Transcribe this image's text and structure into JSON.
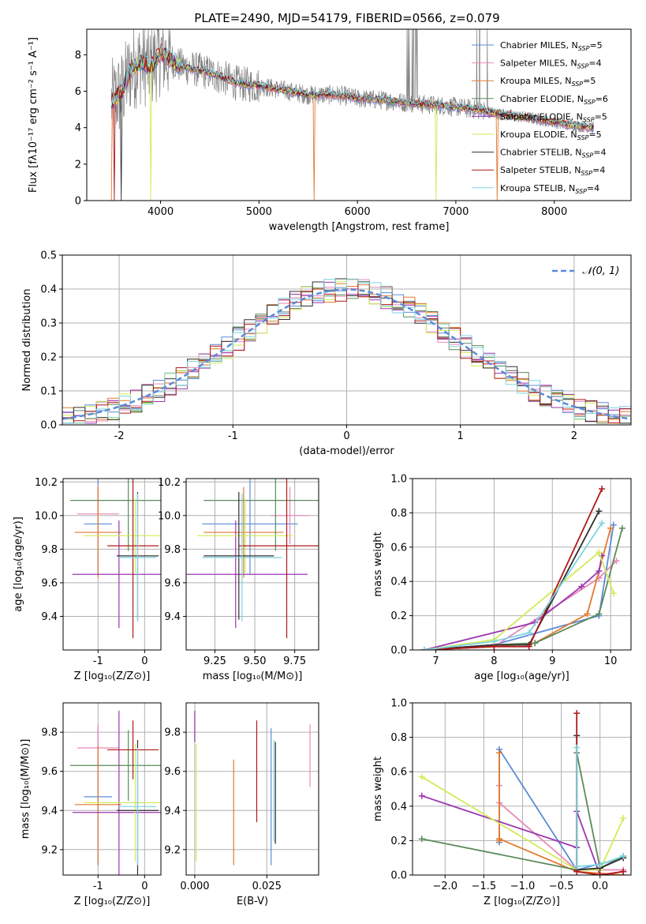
{
  "chart_data": [
    {
      "id": "spectrum",
      "type": "line",
      "title": "PLATE=2490, MJD=54179, FIBERID=0566, z=0.079",
      "xlabel": "wavelength [Angstrom, rest frame]",
      "ylabel": "Flux [fλ10⁻¹⁷ erg cm⁻² s⁻¹ A⁻¹]",
      "xlim": [
        3250,
        8780
      ],
      "ylim": [
        0,
        9.4
      ],
      "xticks": [
        4000,
        5000,
        6000,
        7000,
        8000
      ],
      "yticks": [
        0,
        2,
        4,
        6,
        8
      ],
      "grid": false,
      "legend_position": "top-right",
      "legend": [
        {
          "label": "Chabrier MILES, N_SSP=5",
          "color": "#5b8bd8"
        },
        {
          "label": "Salpeter MILES, N_SSP=4",
          "color": "#e889b8"
        },
        {
          "label": "Kroupa MILES, N_SSP=5",
          "color": "#e47a2e"
        },
        {
          "label": "Chabrier ELODIE, N_SSP=6",
          "color": "#5c8a5c"
        },
        {
          "label": "Salpeter ELODIE, N_SSP=5",
          "color": "#9b36b0"
        },
        {
          "label": "Kroupa ELODIE, N_SSP=5",
          "color": "#d4ea58"
        },
        {
          "label": "Chabrier STELIB, N_SSP=4",
          "color": "#303030"
        },
        {
          "label": "Salpeter STELIB, N_SSP=4",
          "color": "#b01818"
        },
        {
          "label": "Kroupa STELIB, N_SSP=4",
          "color": "#7ed4e0"
        }
      ],
      "data_color": "#808080",
      "model_shape": {
        "x": [
          3500,
          3600,
          3700,
          3800,
          3900,
          4000,
          4200,
          4500,
          4800,
          5000,
          5200,
          5500,
          5800,
          6000,
          6300,
          6600,
          6900,
          7200,
          7500,
          7800,
          8100,
          8400
        ],
        "y": [
          5.4,
          5.9,
          7.2,
          7.6,
          7.3,
          8.1,
          7.4,
          7.0,
          6.4,
          6.3,
          6.1,
          5.8,
          5.8,
          5.6,
          5.5,
          5.3,
          5.2,
          5.0,
          4.7,
          4.5,
          4.2,
          4.0
        ]
      }
    },
    {
      "id": "residuals",
      "type": "histogram",
      "xlabel": "(data-model)/error",
      "ylabel": "Normed distribution",
      "xlim": [
        -2.5,
        2.5
      ],
      "ylim": [
        0,
        0.5
      ],
      "xticks": [
        -2,
        -1,
        0,
        1,
        2
      ],
      "yticks": [
        0.0,
        0.1,
        0.2,
        0.3,
        0.4,
        0.5
      ],
      "grid": true,
      "legend_position": "top-right",
      "legend": [
        {
          "label": "𝒩(0, 1)",
          "color": "#5b8bd8",
          "style": "dashed"
        }
      ],
      "bin_width": 0.1
    },
    {
      "id": "age_vs_Z",
      "type": "errorbar",
      "xlabel": "Z [log₁₀(Z/Z⊙)]",
      "ylabel": "age  [log₁₀(age/yr)]",
      "xlim": [
        -1.75,
        0.35
      ],
      "ylim": [
        9.2,
        10.22
      ],
      "xticks": [
        -1,
        0
      ],
      "yticks": [
        9.4,
        9.6,
        9.8,
        10.0,
        10.2
      ],
      "grid": true,
      "points": [
        {
          "model": "Chabrier MILES",
          "x": -1.0,
          "xerr": 0.3,
          "y": 9.95,
          "yerr": 0.3
        },
        {
          "model": "Salpeter MILES",
          "x": -1.0,
          "xerr": 0.45,
          "y": 10.01,
          "yerr": 0.17
        },
        {
          "model": "Kroupa MILES",
          "x": -1.0,
          "xerr": 0.5,
          "y": 9.9,
          "yerr": 0.27
        },
        {
          "model": "Chabrier ELODIE",
          "x": -0.35,
          "xerr": 1.25,
          "y": 10.09,
          "yerr": 0.3
        },
        {
          "model": "Salpeter ELODIE",
          "x": -0.55,
          "xerr": 1.0,
          "y": 9.65,
          "yerr": 0.32
        },
        {
          "model": "Kroupa ELODIE",
          "x": -0.2,
          "xerr": 1.1,
          "y": 9.88,
          "yerr": 0.22
        },
        {
          "model": "Chabrier STELIB",
          "x": -0.15,
          "xerr": 0.45,
          "y": 9.76,
          "yerr": 0.38
        },
        {
          "model": "Salpeter STELIB",
          "x": -0.25,
          "xerr": 0.55,
          "y": 9.82,
          "yerr": 0.55
        },
        {
          "model": "Kroupa STELIB",
          "x": -0.15,
          "xerr": 0.4,
          "y": 9.75,
          "yerr": 0.38
        }
      ]
    },
    {
      "id": "age_vs_mass",
      "type": "errorbar",
      "xlabel": "mass [log₁₀(M/M⊙)]",
      "ylabel": "",
      "xlim": [
        9.07,
        9.9
      ],
      "ylim": [
        9.2,
        10.22
      ],
      "xticks": [
        9.25,
        9.5,
        9.75
      ],
      "xticklabels": [
        "9.25",
        "9.50",
        "9.75"
      ],
      "yticks": [
        9.4,
        9.6,
        9.8,
        10.0,
        10.2
      ],
      "grid": true,
      "points": [
        {
          "model": "Chabrier MILES",
          "x": 9.47,
          "xerr": 0.3,
          "y": 9.95,
          "yerr": 0.3
        },
        {
          "model": "Salpeter MILES",
          "x": 9.72,
          "xerr": 0.12,
          "y": 10.0,
          "yerr": 0.17
        },
        {
          "model": "Kroupa MILES",
          "x": 9.43,
          "xerr": 0.25,
          "y": 9.9,
          "yerr": 0.27
        },
        {
          "model": "Chabrier ELODIE",
          "x": 9.63,
          "xerr": 0.45,
          "y": 10.09,
          "yerr": 0.3
        },
        {
          "model": "Salpeter ELODIE",
          "x": 9.38,
          "xerr": 0.45,
          "y": 9.65,
          "yerr": 0.32
        },
        {
          "model": "Kroupa ELODIE",
          "x": 9.44,
          "xerr": 0.3,
          "y": 9.88,
          "yerr": 0.22
        },
        {
          "model": "Chabrier STELIB",
          "x": 9.4,
          "xerr": 0.22,
          "y": 9.76,
          "yerr": 0.38
        },
        {
          "model": "Salpeter STELIB",
          "x": 9.7,
          "xerr": 0.3,
          "y": 9.82,
          "yerr": 0.55
        },
        {
          "model": "Kroupa STELIB",
          "x": 9.42,
          "xerr": 0.25,
          "y": 9.75,
          "yerr": 0.38
        }
      ]
    },
    {
      "id": "mass_weight_vs_age",
      "type": "line",
      "xlabel": "age  [log₁₀(age/yr)]",
      "ylabel": "mass weight",
      "xlim": [
        6.6,
        10.35
      ],
      "ylim": [
        0,
        1.0
      ],
      "xticks": [
        7,
        8,
        9,
        10
      ],
      "yticks": [
        0.0,
        0.2,
        0.4,
        0.6,
        0.8,
        1.0
      ],
      "grid": true,
      "series": [
        {
          "model": "Chabrier MILES",
          "x": [
            6.8,
            8.0,
            9.8,
            10.05
          ],
          "y": [
            0.0,
            0.03,
            0.2,
            0.73
          ]
        },
        {
          "model": "Salpeter MILES",
          "x": [
            6.8,
            8.0,
            9.8,
            10.1
          ],
          "y": [
            0.0,
            0.02,
            0.42,
            0.52
          ]
        },
        {
          "model": "Kroupa MILES",
          "x": [
            6.8,
            8.0,
            8.7,
            9.6,
            10.0
          ],
          "y": [
            0.0,
            0.02,
            0.04,
            0.21,
            0.71
          ]
        },
        {
          "model": "Chabrier ELODIE",
          "x": [
            6.8,
            8.0,
            8.7,
            9.8,
            10.2
          ],
          "y": [
            0.0,
            0.03,
            0.04,
            0.21,
            0.71
          ]
        },
        {
          "model": "Salpeter ELODIE",
          "x": [
            6.8,
            8.7,
            9.5,
            9.8,
            9.85
          ],
          "y": [
            0.0,
            0.16,
            0.37,
            0.46,
            0.55
          ]
        },
        {
          "model": "Kroupa ELODIE",
          "x": [
            6.8,
            8.0,
            9.8,
            10.05
          ],
          "y": [
            0.0,
            0.06,
            0.57,
            0.33
          ]
        },
        {
          "model": "Chabrier STELIB",
          "x": [
            6.8,
            8.0,
            8.6,
            9.8
          ],
          "y": [
            0.0,
            0.03,
            0.03,
            0.81
          ]
        },
        {
          "model": "Salpeter STELIB",
          "x": [
            6.8,
            8.0,
            8.6,
            9.85
          ],
          "y": [
            0.0,
            0.02,
            0.02,
            0.94
          ]
        },
        {
          "model": "Kroupa STELIB",
          "x": [
            6.8,
            8.0,
            8.6,
            9.85
          ],
          "y": [
            0.0,
            0.05,
            0.1,
            0.74
          ]
        }
      ]
    },
    {
      "id": "mass_vs_Z",
      "type": "errorbar",
      "xlabel": "Z [log₁₀(Z/Z⊙)]",
      "ylabel": "mass [log₁₀(M/M⊙)]",
      "xlim": [
        -1.75,
        0.35
      ],
      "ylim": [
        9.07,
        9.95
      ],
      "xticks": [
        -1,
        0
      ],
      "yticks": [
        9.2,
        9.4,
        9.6,
        9.8
      ],
      "grid": true,
      "points": [
        {
          "model": "Chabrier MILES",
          "x": -1.0,
          "xerr": 0.3,
          "y": 9.47,
          "yerr": 0.35
        },
        {
          "model": "Salpeter MILES",
          "x": -1.0,
          "xerr": 0.45,
          "y": 9.72,
          "yerr": 0.12
        },
        {
          "model": "Kroupa MILES",
          "x": -1.0,
          "xerr": 0.5,
          "y": 9.43,
          "yerr": 0.3
        },
        {
          "model": "Chabrier ELODIE",
          "x": -0.35,
          "xerr": 1.25,
          "y": 9.63,
          "yerr": 0.18
        },
        {
          "model": "Salpeter ELODIE",
          "x": -0.55,
          "xerr": 1.0,
          "y": 9.39,
          "yerr": 0.52
        },
        {
          "model": "Kroupa ELODIE",
          "x": -0.2,
          "xerr": 1.1,
          "y": 9.44,
          "yerr": 0.3
        },
        {
          "model": "Chabrier STELIB",
          "x": -0.15,
          "xerr": 0.45,
          "y": 9.4,
          "yerr": 0.36
        },
        {
          "model": "Salpeter STELIB",
          "x": -0.25,
          "xerr": 0.55,
          "y": 9.71,
          "yerr": 0.15
        },
        {
          "model": "Kroupa STELIB",
          "x": -0.15,
          "xerr": 0.4,
          "y": 9.42,
          "yerr": 0.3
        }
      ]
    },
    {
      "id": "mass_vs_ebv",
      "type": "errorbar",
      "xlabel": "E(B-V)",
      "ylabel": "",
      "xlim": [
        -0.003,
        0.043
      ],
      "ylim": [
        9.07,
        9.95
      ],
      "xticks": [
        0.0,
        0.025
      ],
      "xticklabels": [
        "0.000",
        "0.025"
      ],
      "yticks": [
        9.2,
        9.4,
        9.6,
        9.8
      ],
      "grid": true,
      "points": [
        {
          "model": "Chabrier MILES",
          "x": 0.0265,
          "xerr": 0,
          "y": 9.47,
          "yerr": 0.35
        },
        {
          "model": "Salpeter MILES",
          "x": 0.04,
          "xerr": 0,
          "y": 9.68,
          "yerr": 0.16
        },
        {
          "model": "Kroupa MILES",
          "x": 0.0135,
          "xerr": 0,
          "y": 9.39,
          "yerr": 0.27
        },
        {
          "model": "Chabrier ELODIE",
          "x": 0.0,
          "xerr": 0,
          "y": 9.83,
          "yerr": 0.08
        },
        {
          "model": "Salpeter ELODIE",
          "x": 0.0,
          "xerr": 0,
          "y": 9.83,
          "yerr": 0.08
        },
        {
          "model": "Kroupa ELODIE",
          "x": 0.0005,
          "xerr": 0,
          "y": 9.44,
          "yerr": 0.3
        },
        {
          "model": "Chabrier STELIB",
          "x": 0.028,
          "xerr": 0,
          "y": 9.49,
          "yerr": 0.26
        },
        {
          "model": "Salpeter STELIB",
          "x": 0.0215,
          "xerr": 0,
          "y": 9.6,
          "yerr": 0.26
        },
        {
          "model": "Kroupa STELIB",
          "x": 0.0275,
          "xerr": 0,
          "y": 9.5,
          "yerr": 0.26
        }
      ]
    },
    {
      "id": "mass_weight_vs_Z",
      "type": "line",
      "xlabel": "Z [log₁₀(Z/Z⊙)]",
      "ylabel": "mass weight",
      "xlim": [
        -2.42,
        0.4
      ],
      "ylim": [
        0,
        1.0
      ],
      "xticks": [
        -2.0,
        -1.5,
        -1.0,
        -0.5,
        0.0
      ],
      "xticklabels": [
        "−2.0",
        "−1.5",
        "−1.0",
        "−0.5",
        "0.0"
      ],
      "yticks": [
        0.0,
        0.2,
        0.4,
        0.6,
        0.8,
        1.0
      ],
      "grid": true,
      "series": [
        {
          "model": "Chabrier MILES",
          "x": [
            -1.3,
            -1.3,
            -0.3,
            0.3
          ],
          "y": [
            0.19,
            0.73,
            0.03,
            0.1
          ]
        },
        {
          "model": "Salpeter MILES",
          "x": [
            -1.3,
            -1.3,
            -0.3,
            0.0,
            0.3
          ],
          "y": [
            0.52,
            0.42,
            0.03,
            0.03,
            0.03
          ]
        },
        {
          "model": "Kroupa MILES",
          "x": [
            -1.3,
            -1.3,
            -1.3,
            -0.3,
            0.3
          ],
          "y": [
            0.71,
            0.2,
            0.21,
            0.02,
            0.0
          ]
        },
        {
          "model": "Chabrier ELODIE",
          "x": [
            -2.3,
            -0.3,
            -0.3,
            0.0,
            0.3
          ],
          "y": [
            0.21,
            0.03,
            0.71,
            0.04,
            0.11
          ]
        },
        {
          "model": "Salpeter ELODIE",
          "x": [
            -2.3,
            -0.3,
            -0.3,
            0.0,
            0.3
          ],
          "y": [
            0.46,
            0.16,
            0.37,
            0.0,
            0.02
          ]
        },
        {
          "model": "Kroupa ELODIE",
          "x": [
            -2.3,
            -0.3,
            0.0,
            0.3
          ],
          "y": [
            0.57,
            0.03,
            0.03,
            0.33
          ]
        },
        {
          "model": "Chabrier STELIB",
          "x": [
            -0.3,
            -0.3,
            0.0,
            0.3
          ],
          "y": [
            0.81,
            0.03,
            0.04,
            0.1
          ]
        },
        {
          "model": "Salpeter STELIB",
          "x": [
            -0.3,
            -0.3,
            0.0,
            0.3
          ],
          "y": [
            0.94,
            0.02,
            0.0,
            0.02
          ]
        },
        {
          "model": "Kroupa STELIB",
          "x": [
            -0.3,
            -0.3,
            0.0,
            0.3
          ],
          "y": [
            0.74,
            0.05,
            0.06,
            0.11
          ]
        }
      ]
    }
  ]
}
